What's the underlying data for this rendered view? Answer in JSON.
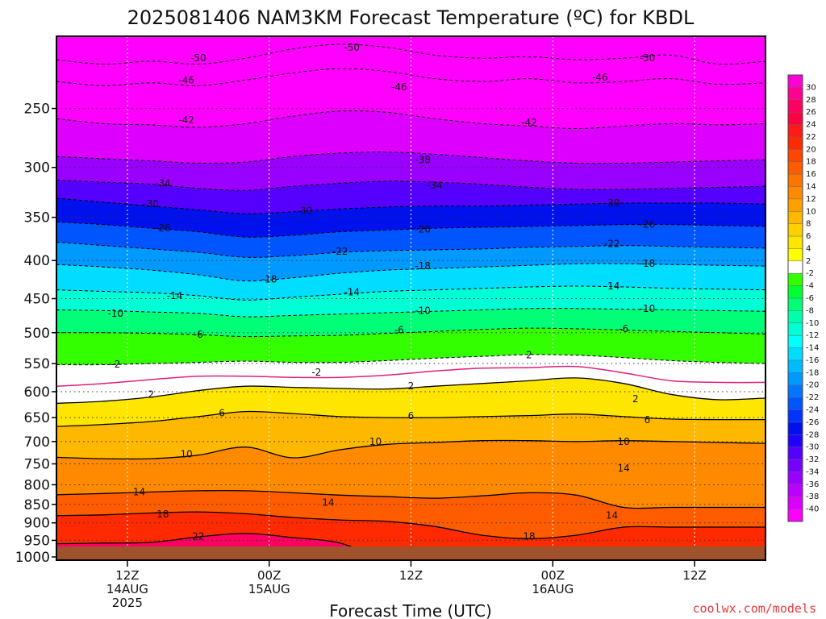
{
  "chart_data": {
    "type": "heatmap",
    "title": "2025081406 NAM3KM Forecast Temperature (ºC) for KBDL",
    "xlabel": "Forecast Time (UTC)",
    "ylabel": "",
    "credit": "coolwx.com/models",
    "x_ticks": [
      {
        "hour": 6,
        "lines": [
          "12Z",
          "14AUG",
          "2025"
        ]
      },
      {
        "hour": 18,
        "lines": [
          "00Z",
          "15AUG"
        ]
      },
      {
        "hour": 30,
        "lines": [
          "12Z"
        ]
      },
      {
        "hour": 42,
        "lines": [
          "00Z",
          "16AUG"
        ]
      },
      {
        "hour": 54,
        "lines": [
          "12Z"
        ]
      }
    ],
    "x_range_hours": [
      0,
      60
    ],
    "y_ticks": [
      250,
      300,
      350,
      400,
      450,
      500,
      550,
      600,
      650,
      700,
      750,
      800,
      850,
      900,
      950,
      1000
    ],
    "y_range_hpa": [
      200,
      1010
    ],
    "y_scale": "log-pressure",
    "colorbar": {
      "labels": [
        30,
        28,
        26,
        24,
        22,
        20,
        18,
        16,
        14,
        12,
        10,
        8,
        6,
        4,
        2,
        -2,
        -4,
        -6,
        -8,
        -10,
        -12,
        -14,
        -16,
        -18,
        -20,
        -22,
        -24,
        -26,
        -28,
        -30,
        -32,
        -34,
        -36,
        -38,
        -40
      ],
      "colors": [
        "#ff00d8",
        "#ff0090",
        "#ff0060",
        "#ff0040",
        "#ff1a1a",
        "#ff2a00",
        "#ff4500",
        "#ff5c00",
        "#ff7300",
        "#ff8a00",
        "#ffa000",
        "#ffb800",
        "#ffd000",
        "#ffe600",
        "#ffff00",
        "#ffffff",
        "#33ff00",
        "#00ff33",
        "#00ff77",
        "#00ffaa",
        "#00ffd5",
        "#00ffff",
        "#00ddff",
        "#00bbff",
        "#0099ff",
        "#0077ff",
        "#0055ff",
        "#0033ff",
        "#0011ee",
        "#2200ff",
        "#5500ff",
        "#7700ff",
        "#9900ff",
        "#bb00ff",
        "#dd00ff",
        "#ff00ff"
      ]
    },
    "contours": [
      {
        "value": -50,
        "style": "dashed",
        "profile": [
          215,
          218,
          216,
          218,
          214,
          208,
          205,
          207,
          212,
          214,
          213,
          215,
          214,
          212,
          218,
          216
        ]
      },
      {
        "value": -46,
        "style": "dashed",
        "profile": [
          230,
          233,
          231,
          233,
          229,
          224,
          221,
          223,
          228,
          230,
          228,
          231,
          230,
          228,
          232,
          231
        ]
      },
      {
        "value": -42,
        "style": "dashed",
        "profile": [
          258,
          262,
          263,
          265,
          262,
          256,
          252,
          253,
          258,
          262,
          264,
          266,
          264,
          262,
          263,
          262
        ]
      },
      {
        "value": -38,
        "style": "dashed",
        "profile": [
          290,
          292,
          294,
          296,
          295,
          290,
          287,
          286,
          288,
          291,
          294,
          296,
          296,
          295,
          294,
          293
        ]
      },
      {
        "value": -34,
        "style": "dashed",
        "profile": [
          312,
          314,
          316,
          320,
          322,
          318,
          315,
          313,
          314,
          316,
          319,
          321,
          321,
          320,
          319,
          318
        ]
      },
      {
        "value": -30,
        "style": "dashed",
        "profile": [
          330,
          334,
          338,
          342,
          346,
          344,
          341,
          339,
          338,
          338,
          337,
          336,
          335,
          335,
          335,
          336
        ]
      },
      {
        "value": -26,
        "style": "dashed",
        "profile": [
          355,
          358,
          362,
          366,
          372,
          370,
          366,
          364,
          362,
          361,
          360,
          359,
          358,
          358,
          359,
          360
        ]
      },
      {
        "value": -22,
        "style": "dashed",
        "profile": [
          378,
          382,
          386,
          390,
          396,
          394,
          390,
          388,
          387,
          386,
          384,
          383,
          382,
          383,
          384,
          385
        ]
      },
      {
        "value": -18,
        "style": "dashed",
        "profile": [
          405,
          408,
          412,
          418,
          426,
          422,
          416,
          412,
          410,
          408,
          406,
          404,
          404,
          405,
          406,
          407
        ]
      },
      {
        "value": -14,
        "style": "dashed",
        "profile": [
          438,
          440,
          442,
          446,
          452,
          448,
          444,
          440,
          438,
          436,
          434,
          433,
          434,
          436,
          437,
          438
        ]
      },
      {
        "value": -10,
        "style": "dashed",
        "profile": [
          466,
          467,
          469,
          471,
          476,
          474,
          472,
          470,
          468,
          466,
          464,
          464,
          465,
          466,
          467,
          468
        ]
      },
      {
        "value": -6,
        "style": "dashed",
        "profile": [
          500,
          500,
          501,
          503,
          506,
          505,
          504,
          501,
          498,
          495,
          493,
          494,
          496,
          498,
          500,
          502
        ]
      },
      {
        "value": -2,
        "style": "dashed",
        "profile": [
          552,
          552,
          550,
          548,
          546,
          548,
          548,
          545,
          541,
          538,
          535,
          536,
          540,
          545,
          548,
          550
        ]
      },
      {
        "value": 0,
        "style": "magenta",
        "profile": [
          590,
          585,
          578,
          572,
          572,
          574,
          574,
          570,
          563,
          558,
          557,
          555,
          566,
          580,
          583,
          583
        ]
      },
      {
        "value": 2,
        "style": "solid",
        "profile": [
          622,
          618,
          610,
          598,
          590,
          592,
          594,
          595,
          590,
          585,
          580,
          575,
          585,
          605,
          615,
          612
        ]
      },
      {
        "value": 6,
        "style": "solid",
        "profile": [
          668,
          664,
          658,
          648,
          638,
          642,
          648,
          650,
          650,
          648,
          646,
          643,
          648,
          653,
          654,
          654
        ]
      },
      {
        "value": 10,
        "style": "solid",
        "profile": [
          735,
          738,
          738,
          730,
          712,
          736,
          718,
          706,
          702,
          698,
          698,
          700,
          698,
          700,
          702,
          704
        ]
      },
      {
        "value": 14,
        "style": "solid",
        "profile": [
          825,
          822,
          818,
          815,
          815,
          820,
          826,
          830,
          834,
          828,
          820,
          826,
          858,
          858,
          858,
          858
        ]
      },
      {
        "value": 18,
        "style": "solid",
        "profile": [
          880,
          878,
          873,
          870,
          875,
          885,
          892,
          896,
          910,
          935,
          945,
          935,
          912,
          912,
          912,
          912
        ]
      },
      {
        "value": 22,
        "style": "solid",
        "profile": [
          960,
          958,
          956,
          940,
          930,
          942,
          958,
          1010,
          1010,
          1010,
          1010,
          1010,
          1010,
          1010,
          1010,
          1010
        ]
      }
    ],
    "contour_labels": [
      {
        "text": "-50",
        "hour": 12,
        "hpa": 214
      },
      {
        "text": "-46",
        "hour": 11,
        "hpa": 229
      },
      {
        "text": "-42",
        "hour": 11,
        "hpa": 259
      },
      {
        "text": "-34",
        "hour": 9,
        "hpa": 315
      },
      {
        "text": "-30",
        "hour": 8,
        "hpa": 336
      },
      {
        "text": "-26",
        "hour": 9,
        "hpa": 362
      },
      {
        "text": "-18",
        "hour": 18,
        "hpa": 424
      },
      {
        "text": "-14",
        "hour": 10,
        "hpa": 446
      },
      {
        "text": "-10",
        "hour": 5,
        "hpa": 471
      },
      {
        "text": "-6",
        "hour": 12,
        "hpa": 503
      },
      {
        "text": "-2",
        "hour": 5,
        "hpa": 551
      },
      {
        "text": "2",
        "hour": 8,
        "hpa": 605
      },
      {
        "text": "6",
        "hour": 14,
        "hpa": 641
      },
      {
        "text": "10",
        "hour": 11,
        "hpa": 728
      },
      {
        "text": "14",
        "hour": 7,
        "hpa": 818
      },
      {
        "text": "18",
        "hour": 9,
        "hpa": 876
      },
      {
        "text": "22",
        "hour": 12,
        "hpa": 938
      },
      {
        "text": "-50",
        "hour": 25,
        "hpa": 207
      },
      {
        "text": "-46",
        "hour": 29,
        "hpa": 234
      },
      {
        "text": "-38",
        "hour": 31,
        "hpa": 293
      },
      {
        "text": "-34",
        "hour": 32,
        "hpa": 317
      },
      {
        "text": "-30",
        "hour": 21,
        "hpa": 343
      },
      {
        "text": "-26",
        "hour": 31,
        "hpa": 363
      },
      {
        "text": "-22",
        "hour": 24,
        "hpa": 389
      },
      {
        "text": "-18",
        "hour": 31,
        "hpa": 407
      },
      {
        "text": "-14",
        "hour": 25,
        "hpa": 441
      },
      {
        "text": "-10",
        "hour": 31,
        "hpa": 467
      },
      {
        "text": "-6",
        "hour": 29,
        "hpa": 496
      },
      {
        "text": "-2",
        "hour": 22,
        "hpa": 565
      },
      {
        "text": "2",
        "hour": 30,
        "hpa": 590
      },
      {
        "text": "6",
        "hour": 30,
        "hpa": 647
      },
      {
        "text": "10",
        "hour": 27,
        "hpa": 700
      },
      {
        "text": "14",
        "hour": 23,
        "hpa": 845
      },
      {
        "text": "-50",
        "hour": 50,
        "hpa": 214
      },
      {
        "text": "-46",
        "hour": 46,
        "hpa": 227
      },
      {
        "text": "-42",
        "hour": 40,
        "hpa": 261
      },
      {
        "text": "-30",
        "hour": 47,
        "hpa": 335
      },
      {
        "text": "-26",
        "hour": 50,
        "hpa": 358
      },
      {
        "text": "-22",
        "hour": 47,
        "hpa": 380
      },
      {
        "text": "-18",
        "hour": 50,
        "hpa": 404
      },
      {
        "text": "-14",
        "hour": 47,
        "hpa": 433
      },
      {
        "text": "-10",
        "hour": 50,
        "hpa": 464
      },
      {
        "text": "-6",
        "hour": 48,
        "hpa": 494
      },
      {
        "text": "2",
        "hour": 40,
        "hpa": 536
      },
      {
        "text": "2",
        "hour": 49,
        "hpa": 614
      },
      {
        "text": "6",
        "hour": 50,
        "hpa": 655
      },
      {
        "text": "10",
        "hour": 48,
        "hpa": 700
      },
      {
        "text": "14",
        "hour": 48,
        "hpa": 760
      },
      {
        "text": "14",
        "hour": 47,
        "hpa": 880
      },
      {
        "text": "18",
        "hour": 40,
        "hpa": 938
      }
    ]
  }
}
